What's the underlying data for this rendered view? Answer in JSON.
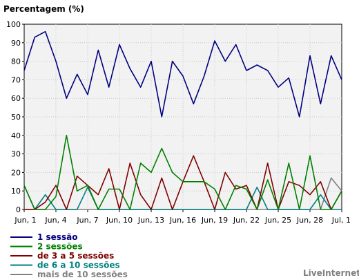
{
  "chart_data": {
    "type": "line",
    "title": "Percentagem (%)",
    "ylim": [
      0,
      100
    ],
    "y_ticks": [
      0,
      10,
      20,
      30,
      40,
      50,
      60,
      70,
      80,
      90,
      100
    ],
    "x_tick_labels": [
      "Jun, 1",
      "Jun, 4",
      "Jun, 7",
      "Jun, 10",
      "Jun, 13",
      "Jun, 16",
      "Jun, 19",
      "Jun, 22",
      "Jun, 25",
      "Jun, 28",
      "Jul, 1"
    ],
    "x_tick_days": [
      0,
      3,
      6,
      9,
      12,
      15,
      18,
      21,
      24,
      27,
      30
    ],
    "days": [
      0,
      1,
      2,
      3,
      4,
      5,
      6,
      7,
      8,
      9,
      10,
      11,
      12,
      13,
      14,
      15,
      16,
      17,
      18,
      19,
      20,
      21,
      22,
      23,
      24,
      25,
      26,
      27,
      28,
      29,
      30
    ],
    "grid": true,
    "legend_position": "bottom-left",
    "series": [
      {
        "name": "1 sessão",
        "color": "#000080",
        "values": [
          75,
          93,
          96,
          80,
          60,
          73,
          62,
          86,
          66,
          89,
          76,
          66,
          80,
          50,
          80,
          72,
          57,
          72,
          91,
          80,
          89,
          75,
          78,
          75,
          66,
          71,
          50,
          83,
          57,
          83,
          70
        ]
      },
      {
        "name": "2 sessões",
        "color": "#008000",
        "values": [
          13,
          0,
          0,
          7,
          40,
          10,
          13,
          0,
          11,
          11,
          0,
          25,
          20,
          33,
          20,
          15,
          15,
          15,
          11,
          0,
          13,
          11,
          0,
          16,
          0,
          25,
          0,
          29,
          0,
          0,
          10
        ]
      },
      {
        "name": "de 3 a 5 sessões",
        "color": "#800000",
        "values": [
          0,
          0,
          4,
          13,
          0,
          18,
          13,
          8,
          22,
          0,
          25,
          8,
          0,
          17,
          0,
          15,
          29,
          15,
          0,
          20,
          11,
          13,
          0,
          25,
          0,
          15,
          13,
          8,
          15,
          0,
          10
        ]
      },
      {
        "name": "de 6 a 10 sessões",
        "color": "#008080",
        "values": [
          13,
          0,
          8,
          0,
          0,
          0,
          12,
          0,
          0,
          0,
          0,
          0,
          0,
          0,
          0,
          0,
          0,
          0,
          0,
          0,
          0,
          0,
          12,
          0,
          0,
          0,
          0,
          0,
          8,
          0,
          0
        ]
      },
      {
        "name": "mais de 10 sessões",
        "color": "#808080",
        "values": [
          0,
          0,
          0,
          0,
          0,
          0,
          0,
          0,
          0,
          0,
          0,
          0,
          0,
          0,
          0,
          0,
          0,
          0,
          0,
          0,
          0,
          0,
          0,
          0,
          0,
          0,
          0,
          0,
          0,
          17,
          10
        ]
      }
    ]
  },
  "branding": "LiveInternet"
}
